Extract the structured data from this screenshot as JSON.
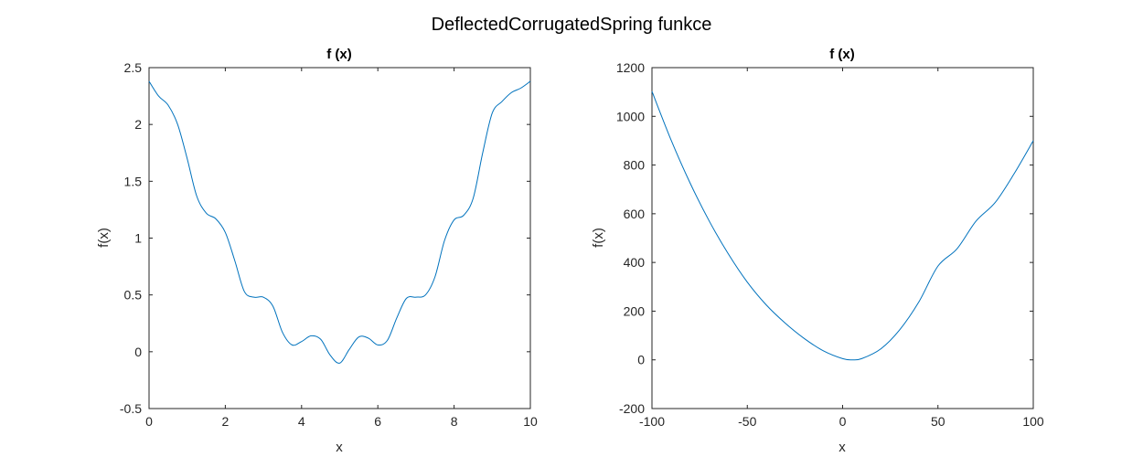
{
  "figure": {
    "title": "DeflectedCorrugatedSpring funkce"
  },
  "colors": {
    "line": "#0072BD",
    "axes": "#262626",
    "background": "#ffffff"
  },
  "chart_data": [
    {
      "type": "line",
      "title": "f (x)",
      "xlabel": "x",
      "ylabel": "f(x)",
      "xlim": [
        0,
        10
      ],
      "ylim": [
        -0.5,
        2.5
      ],
      "xticks": [
        0,
        2,
        4,
        6,
        8,
        10
      ],
      "yticks": [
        -0.5,
        0,
        0.5,
        1,
        1.5,
        2,
        2.5
      ],
      "xtick_labels": [
        "0",
        "2",
        "4",
        "6",
        "8",
        "10"
      ],
      "ytick_labels": [
        "-0.5",
        "0",
        "0.5",
        "1",
        "1.5",
        "2",
        "2.5"
      ],
      "grid": false,
      "series": [
        {
          "x": [
            0,
            0.25,
            0.5,
            0.75,
            1,
            1.25,
            1.5,
            1.75,
            2,
            2.25,
            2.5,
            2.75,
            3,
            3.25,
            3.5,
            3.75,
            4,
            4.25,
            4.5,
            4.75,
            5,
            5.25,
            5.5,
            5.75,
            6,
            6.25,
            6.5,
            6.75,
            7,
            7.25,
            7.5,
            7.75,
            8,
            8.25,
            8.5,
            8.75,
            9,
            9.25,
            9.5,
            9.75,
            10
          ],
          "y": [
            2.38,
            2.25,
            2.17,
            2.0,
            1.7,
            1.37,
            1.22,
            1.17,
            1.05,
            0.8,
            0.53,
            0.48,
            0.48,
            0.4,
            0.17,
            0.06,
            0.09,
            0.14,
            0.11,
            -0.03,
            -0.1,
            0.02,
            0.13,
            0.12,
            0.06,
            0.1,
            0.3,
            0.47,
            0.48,
            0.5,
            0.66,
            0.98,
            1.16,
            1.2,
            1.35,
            1.75,
            2.1,
            2.2,
            2.28,
            2.32,
            2.38
          ]
        }
      ]
    },
    {
      "type": "line",
      "title": "f (x)",
      "xlabel": "x",
      "ylabel": "f(x)",
      "xlim": [
        -100,
        100
      ],
      "ylim": [
        -200,
        1200
      ],
      "xticks": [
        -100,
        -50,
        0,
        50,
        100
      ],
      "yticks": [
        -200,
        0,
        200,
        400,
        600,
        800,
        1000,
        1200
      ],
      "xtick_labels": [
        "-100",
        "-50",
        "0",
        "50",
        "100"
      ],
      "ytick_labels": [
        "-200",
        "0",
        "200",
        "400",
        "600",
        "800",
        "1000",
        "1200"
      ],
      "grid": false,
      "series": [
        {
          "x": [
            -100,
            -90,
            -80,
            -70,
            -60,
            -50,
            -40,
            -30,
            -20,
            -10,
            0,
            5,
            10,
            20,
            30,
            40,
            50,
            60,
            70,
            80,
            90,
            100
          ],
          "y": [
            1102.5,
            903.1,
            726.1,
            570.6,
            435.6,
            319.0,
            225.0,
            150.0,
            87.0,
            36.6,
            5.0,
            0,
            5.0,
            45.0,
            124.0,
            238.0,
            385.0,
            456.0,
            570.0,
            646.0,
            765.0,
            900.0
          ]
        }
      ]
    }
  ]
}
